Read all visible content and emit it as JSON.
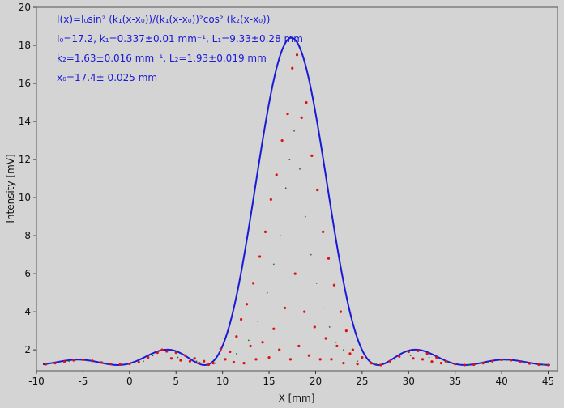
{
  "chart_data": {
    "type": "scatter",
    "xlabel": "X [mm]",
    "ylabel": "Intensity [mV]",
    "xlim": [
      -10,
      46
    ],
    "ylim": [
      0.9,
      20
    ],
    "x_ticks": [
      -10,
      -5,
      0,
      5,
      10,
      15,
      20,
      25,
      30,
      35,
      40,
      45
    ],
    "y_ticks": [
      2,
      4,
      6,
      8,
      10,
      12,
      14,
      16,
      18,
      20
    ],
    "x_tick_labels": [
      "-10",
      "-5",
      "0",
      "5",
      "10",
      "15",
      "20",
      "25",
      "30",
      "35",
      "40",
      "45"
    ],
    "y_tick_labels": [
      "2",
      "4",
      "6",
      "8",
      "10",
      "12",
      "14",
      "16",
      "18",
      "20"
    ],
    "grid": false,
    "fit_model": {
      "I0": 17.2,
      "k1": 0.337,
      "k2": 1.63,
      "x0": 17.4,
      "baseline": 1.2
    },
    "series": [
      {
        "kind": "points",
        "color": "#dd1111",
        "points": [
          [
            -9,
            1.24
          ],
          [
            -8,
            1.3
          ],
          [
            -7,
            1.38
          ],
          [
            -6,
            1.45
          ],
          [
            -5,
            1.48
          ],
          [
            -4,
            1.42
          ],
          [
            -3,
            1.33
          ],
          [
            -2,
            1.26
          ],
          [
            -1,
            1.24
          ],
          [
            0,
            1.26
          ],
          [
            1,
            1.35
          ],
          [
            2,
            1.6
          ],
          [
            3,
            1.85
          ],
          [
            3.5,
            2.0
          ],
          [
            4,
            1.92
          ],
          [
            4.5,
            1.55
          ],
          [
            5,
            1.85
          ],
          [
            5.5,
            1.45
          ],
          [
            6,
            1.7
          ],
          [
            6.5,
            1.4
          ],
          [
            7,
            1.55
          ],
          [
            7.5,
            1.3
          ],
          [
            8,
            1.4
          ],
          [
            8.5,
            1.22
          ],
          [
            9,
            1.3
          ],
          [
            9.8,
            2.05
          ],
          [
            10.3,
            1.5
          ],
          [
            10.8,
            1.9
          ],
          [
            11.2,
            1.35
          ],
          [
            11.5,
            2.7
          ],
          [
            12,
            3.6
          ],
          [
            12.3,
            1.3
          ],
          [
            12.6,
            4.4
          ],
          [
            13,
            2.2
          ],
          [
            13.3,
            5.5
          ],
          [
            13.6,
            1.5
          ],
          [
            14,
            6.9
          ],
          [
            14.3,
            2.4
          ],
          [
            14.6,
            8.2
          ],
          [
            15,
            1.6
          ],
          [
            15.2,
            9.9
          ],
          [
            15.5,
            3.1
          ],
          [
            15.8,
            11.2
          ],
          [
            16.1,
            2.0
          ],
          [
            16.4,
            13.0
          ],
          [
            16.7,
            4.2
          ],
          [
            17,
            14.4
          ],
          [
            17.3,
            1.5
          ],
          [
            17.5,
            16.8
          ],
          [
            17.8,
            6.0
          ],
          [
            18,
            17.5
          ],
          [
            18.2,
            2.2
          ],
          [
            18.5,
            14.2
          ],
          [
            18.8,
            4.0
          ],
          [
            19,
            15.0
          ],
          [
            19.3,
            1.7
          ],
          [
            19.6,
            12.2
          ],
          [
            19.9,
            3.2
          ],
          [
            20.2,
            10.4
          ],
          [
            20.5,
            1.5
          ],
          [
            20.8,
            8.2
          ],
          [
            21.1,
            2.6
          ],
          [
            21.4,
            6.8
          ],
          [
            21.7,
            1.5
          ],
          [
            22,
            5.4
          ],
          [
            22.3,
            2.2
          ],
          [
            22.7,
            4.0
          ],
          [
            23,
            1.3
          ],
          [
            23.3,
            3.0
          ],
          [
            23.7,
            1.8
          ],
          [
            24,
            2.0
          ],
          [
            24.5,
            1.25
          ],
          [
            25,
            1.6
          ],
          [
            26,
            1.3
          ],
          [
            27,
            1.2
          ],
          [
            28,
            1.4
          ],
          [
            29,
            1.65
          ],
          [
            30,
            1.9
          ],
          [
            30.5,
            1.55
          ],
          [
            31,
            1.95
          ],
          [
            31.5,
            1.5
          ],
          [
            32,
            1.8
          ],
          [
            32.5,
            1.38
          ],
          [
            33,
            1.6
          ],
          [
            33.5,
            1.3
          ],
          [
            34,
            1.4
          ],
          [
            35,
            1.25
          ],
          [
            36,
            1.2
          ],
          [
            37,
            1.22
          ],
          [
            38,
            1.3
          ],
          [
            39,
            1.4
          ],
          [
            40,
            1.48
          ],
          [
            41,
            1.45
          ],
          [
            42,
            1.36
          ],
          [
            43,
            1.28
          ],
          [
            44,
            1.22
          ],
          [
            45,
            1.2
          ]
        ]
      },
      {
        "kind": "dots",
        "color": "#1a7a1a",
        "points": [
          [
            -8.5,
            1.3
          ],
          [
            -6.5,
            1.4
          ],
          [
            -4.5,
            1.42
          ],
          [
            -2.5,
            1.3
          ],
          [
            1.5,
            1.4
          ],
          [
            2.5,
            1.7
          ],
          [
            5.2,
            1.6
          ],
          [
            7.2,
            1.4
          ],
          [
            9.2,
            1.3
          ],
          [
            11.5,
            1.8
          ],
          [
            12.8,
            2.5
          ],
          [
            13.8,
            3.5
          ],
          [
            14.8,
            5.0
          ],
          [
            15.5,
            6.5
          ],
          [
            16.2,
            8.0
          ],
          [
            16.8,
            10.5
          ],
          [
            17.2,
            12.0
          ],
          [
            17.7,
            13.5
          ],
          [
            18.3,
            11.5
          ],
          [
            18.9,
            9.0
          ],
          [
            19.5,
            7.0
          ],
          [
            20.1,
            5.5
          ],
          [
            20.8,
            4.2
          ],
          [
            21.5,
            3.2
          ],
          [
            22.2,
            2.4
          ],
          [
            23.0,
            2.0
          ],
          [
            24.5,
            1.4
          ],
          [
            26.5,
            1.25
          ],
          [
            28.5,
            1.5
          ],
          [
            30.2,
            1.7
          ],
          [
            32.2,
            1.6
          ],
          [
            34.2,
            1.35
          ],
          [
            36.5,
            1.22
          ],
          [
            38.5,
            1.35
          ],
          [
            40.5,
            1.45
          ],
          [
            42.5,
            1.32
          ],
          [
            44.5,
            1.22
          ]
        ]
      },
      {
        "kind": "fit",
        "color": "#1a1ad6"
      }
    ],
    "annotation_lines": [
      "I(x)=I₀sin² (k₁(x-x₀))/(k₁(x-x₀))²cos² (k₂(x-x₀))",
      "I₀=17.2,  k₁=0.337±0.01 mm⁻¹,   L₁=9.33±0.28 mm",
      "k₂=1.63±0.016 mm⁻¹,   L₂=1.93±0.019 mm",
      "x₀=17.4±  0.025 mm"
    ]
  }
}
